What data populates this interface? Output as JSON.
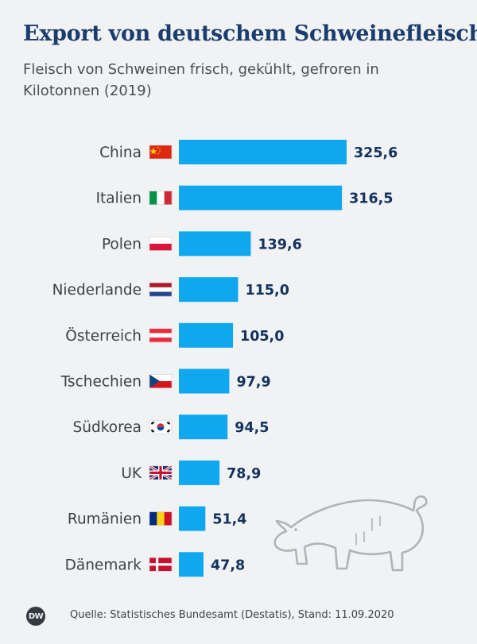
{
  "header": {
    "title": "Export von deutschem Schweinefleisch",
    "subtitle": "Fleisch von Schweinen frisch, gekühlt, gefroren in Kilotonnen (2019)"
  },
  "footer": {
    "logo_text": "DW",
    "source": "Quelle: Statistisches Bundesamt (Destatis), Stand: 11.09.2020"
  },
  "colors": {
    "bar": "#0fa8f0",
    "title": "#1b3d6d",
    "value_label": "#14325e",
    "category_label": "#3d4249",
    "background": "#f1f2f3",
    "pig_outline": "#aeb4bc"
  },
  "decoration": {
    "pig_icon": "pig-outline-icon"
  },
  "chart_data": {
    "type": "bar",
    "orientation": "horizontal",
    "categories": [
      "China",
      "Italien",
      "Polen",
      "Niederlande",
      "Österreich",
      "Tschechien",
      "Südkorea",
      "UK",
      "Rumänien",
      "Dänemark"
    ],
    "flags": [
      "flag-china-icon",
      "flag-italy-icon",
      "flag-poland-icon",
      "flag-netherlands-icon",
      "flag-austria-icon",
      "flag-czechia-icon",
      "flag-south-korea-icon",
      "flag-uk-icon",
      "flag-romania-icon",
      "flag-denmark-icon"
    ],
    "values": [
      325.6,
      316.5,
      139.6,
      115.0,
      105.0,
      97.9,
      94.5,
      78.9,
      51.4,
      47.8
    ],
    "value_labels": [
      "325,6",
      "316,5",
      "139,6",
      "115,0",
      "105,0",
      "97,9",
      "94,5",
      "78,9",
      "51,4",
      "47,8"
    ],
    "title": "Export von deutschem Schweinefleisch",
    "xlabel": "",
    "ylabel": "",
    "xlim": [
      0,
      325.6
    ],
    "grid": false,
    "legend": "none"
  }
}
